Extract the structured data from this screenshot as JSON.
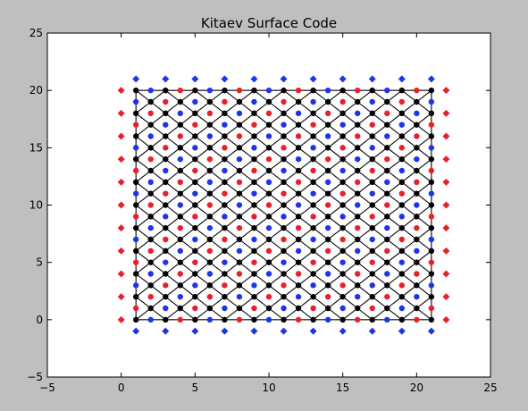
{
  "chart_data": {
    "type": "scatter",
    "title": "Kitaev Surface Code",
    "xlabel": "",
    "ylabel": "",
    "xlim": [
      -5,
      25
    ],
    "ylim": [
      -5,
      25
    ],
    "xticks": [
      "−5",
      "0",
      "5",
      "10",
      "15",
      "20",
      "25"
    ],
    "yticks": [
      "−5",
      "0",
      "5",
      "10",
      "15",
      "20",
      "25"
    ],
    "xtick_values": [
      -5,
      0,
      5,
      10,
      15,
      20,
      25
    ],
    "ytick_values": [
      -5,
      0,
      5,
      10,
      15,
      20,
      25
    ],
    "grid": false,
    "lattice": {
      "x_range": [
        1,
        21
      ],
      "y_range": [
        0,
        20
      ],
      "vertices": "black dots at (x,y) where x+y is odd",
      "edges": "black lines joining vertices diagonally (x±1, y±1)",
      "boundary": "black rectangle from (1,0) to (21,20)"
    },
    "series": [
      {
        "marker": "circle",
        "color": "#000000",
        "rule": "x in 1..21, y in 0..20, x+y odd"
      },
      {
        "marker": "circle",
        "color": "#e8202a",
        "rule": "x in 1..21, y in 0..20, x+y even, (x-y) mod 4 = 0"
      },
      {
        "marker": "circle",
        "color": "#1d35e8",
        "rule": "x in 1..21, y in 0..20, x+y even, (x-y) mod 4 = 2"
      },
      {
        "marker": "diamond",
        "color": "#e8202a",
        "points": [
          [
            0,
            0
          ],
          [
            0,
            2
          ],
          [
            0,
            4
          ],
          [
            0,
            6
          ],
          [
            0,
            8
          ],
          [
            0,
            10
          ],
          [
            0,
            12
          ],
          [
            0,
            14
          ],
          [
            0,
            16
          ],
          [
            0,
            18
          ],
          [
            0,
            20
          ],
          [
            22,
            0
          ],
          [
            22,
            2
          ],
          [
            22,
            4
          ],
          [
            22,
            6
          ],
          [
            22,
            8
          ],
          [
            22,
            10
          ],
          [
            22,
            12
          ],
          [
            22,
            14
          ],
          [
            22,
            16
          ],
          [
            22,
            18
          ],
          [
            22,
            20
          ]
        ]
      },
      {
        "marker": "diamond",
        "color": "#1d35e8",
        "points": [
          [
            1,
            -1
          ],
          [
            3,
            -1
          ],
          [
            5,
            -1
          ],
          [
            7,
            -1
          ],
          [
            9,
            -1
          ],
          [
            11,
            -1
          ],
          [
            13,
            -1
          ],
          [
            15,
            -1
          ],
          [
            17,
            -1
          ],
          [
            19,
            -1
          ],
          [
            21,
            -1
          ],
          [
            1,
            21
          ],
          [
            3,
            21
          ],
          [
            5,
            21
          ],
          [
            7,
            21
          ],
          [
            9,
            21
          ],
          [
            11,
            21
          ],
          [
            13,
            21
          ],
          [
            15,
            21
          ],
          [
            17,
            21
          ],
          [
            19,
            21
          ],
          [
            21,
            21
          ]
        ]
      }
    ]
  }
}
